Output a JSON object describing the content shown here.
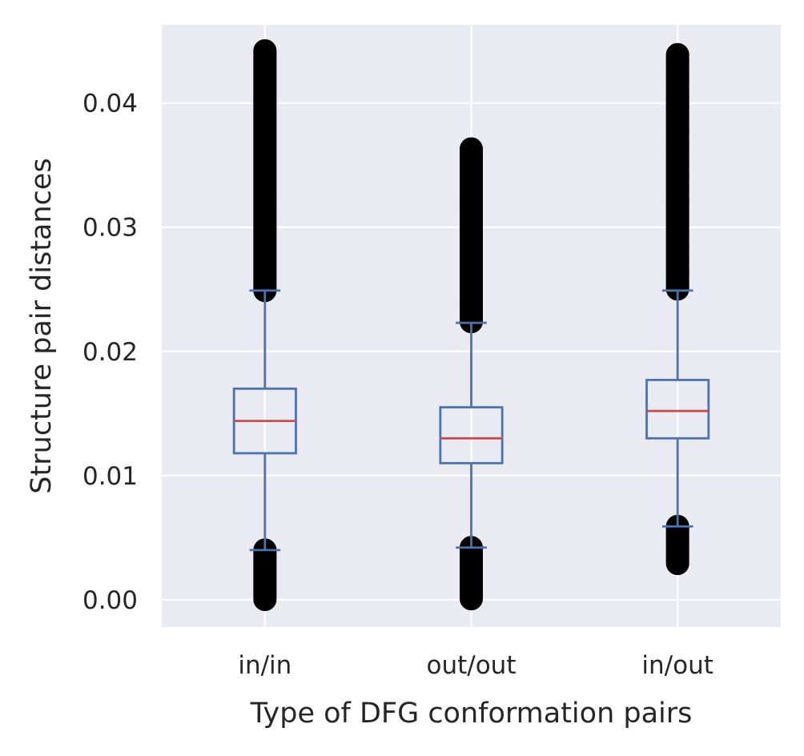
{
  "chart_data": {
    "type": "box",
    "title": "",
    "xlabel": "Type of DFG conformation pairs",
    "ylabel": "Structure pair distances",
    "ylim": [
      -0.0022,
      0.0463
    ],
    "yticks": [
      0.0,
      0.01,
      0.02,
      0.03,
      0.04
    ],
    "ytick_labels": [
      "0.00",
      "0.01",
      "0.02",
      "0.03",
      "0.04"
    ],
    "grid": true,
    "style": "seaborn-darkgrid",
    "colors": {
      "plot_background": "#eaeaf2",
      "grid": "#ffffff",
      "box": "#4c72b0",
      "median": "#c44e52",
      "flier_edge": "#000000"
    },
    "categories": [
      "in/in",
      "out/out",
      "in/out"
    ],
    "boxes": [
      {
        "category": "in/in",
        "whisker_low": 0.004,
        "q1": 0.0118,
        "median": 0.0144,
        "q3": 0.017,
        "whisker_high": 0.0249,
        "outliers_low_range": [
          0.0,
          0.004
        ],
        "outliers_high_range": [
          0.0249,
          0.0442
        ]
      },
      {
        "category": "out/out",
        "whisker_low": 0.0042,
        "q1": 0.011,
        "median": 0.013,
        "q3": 0.0155,
        "whisker_high": 0.0223,
        "outliers_low_range": [
          0.0,
          0.0042
        ],
        "outliers_high_range": [
          0.0223,
          0.0363
        ]
      },
      {
        "category": "in/out",
        "whisker_low": 0.0059,
        "q1": 0.013,
        "median": 0.0152,
        "q3": 0.0177,
        "whisker_high": 0.0249,
        "outliers_low_range": [
          0.0029,
          0.0059
        ],
        "outliers_high_range": [
          0.0249,
          0.0439
        ]
      }
    ]
  }
}
